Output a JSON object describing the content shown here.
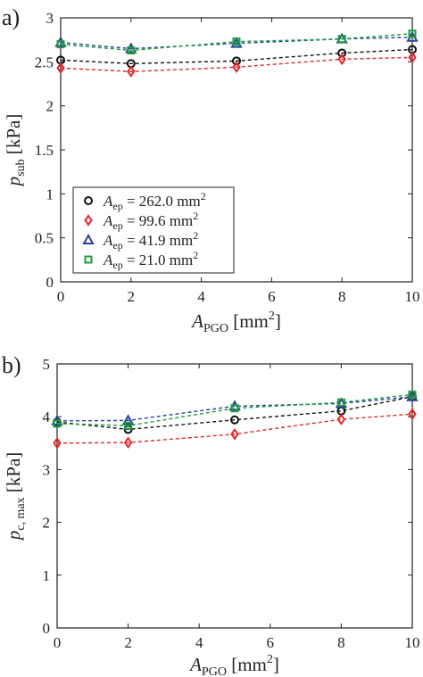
{
  "chart_data": [
    {
      "type": "line",
      "panel_label": "a)",
      "x": [
        0,
        2,
        5,
        8,
        10
      ],
      "xlim": [
        0,
        10
      ],
      "ylim": [
        0,
        3
      ],
      "xticks": [
        "0",
        "2",
        "4",
        "6",
        "8",
        "10"
      ],
      "yticks": [
        "0",
        "0.5",
        "1",
        "1.5",
        "2",
        "2.5",
        "3"
      ],
      "xlabel": {
        "main": "A",
        "sub": "PGO",
        "unit": " [mm",
        "sup": "2",
        "unit_end": "]"
      },
      "ylabel": {
        "main": "p",
        "sub": "sub",
        "unit": " [kPa]"
      },
      "grid": false,
      "legend_position": "bottom-left",
      "series": [
        {
          "name": "A_ep = 262.0 mm²",
          "legend": {
            "main": "A",
            "sub": "ep",
            "eq": " = 262.0 mm",
            "sup": "2"
          },
          "marker": "circle",
          "color": "#111111",
          "values": [
            2.52,
            2.48,
            2.51,
            2.6,
            2.64
          ]
        },
        {
          "name": "A_ep = 99.6 mm²",
          "legend": {
            "main": "A",
            "sub": "ep",
            "eq": " = 99.6 mm",
            "sup": "2"
          },
          "marker": "diamond",
          "color": "#e0292b",
          "values": [
            2.43,
            2.39,
            2.44,
            2.53,
            2.55
          ]
        },
        {
          "name": "A_ep = 41.9 mm²",
          "legend": {
            "main": "A",
            "sub": "ep",
            "eq": " = 41.9 mm",
            "sup": "2"
          },
          "marker": "triangle",
          "color": "#2b3f9e",
          "values": [
            2.72,
            2.65,
            2.71,
            2.76,
            2.78
          ]
        },
        {
          "name": "A_ep = 21.0 mm²",
          "legend": {
            "main": "A",
            "sub": "ep",
            "eq": " = 21.0 mm",
            "sup": "2"
          },
          "marker": "square",
          "color": "#1a9e3a",
          "values": [
            2.7,
            2.63,
            2.73,
            2.76,
            2.82
          ]
        }
      ]
    },
    {
      "type": "line",
      "panel_label": "b)",
      "x": [
        0,
        2,
        5,
        8,
        10
      ],
      "xlim": [
        0,
        10
      ],
      "ylim": [
        0,
        5
      ],
      "xticks": [
        "0",
        "2",
        "4",
        "6",
        "8",
        "10"
      ],
      "yticks": [
        "0",
        "1",
        "2",
        "3",
        "4",
        "5"
      ],
      "xlabel": {
        "main": "A",
        "sub": "PGO",
        "unit": " [mm",
        "sup": "2",
        "unit_end": "]"
      },
      "ylabel": {
        "main": "p",
        "sub": "c, max",
        "unit": " [kPa]"
      },
      "grid": false,
      "series": [
        {
          "name": "A_ep = 262.0 mm²",
          "marker": "circle",
          "color": "#111111",
          "values": [
            3.9,
            3.76,
            3.94,
            4.11,
            4.38
          ]
        },
        {
          "name": "A_ep = 99.6 mm²",
          "marker": "diamond",
          "color": "#e0292b",
          "values": [
            3.5,
            3.51,
            3.67,
            3.95,
            4.05
          ]
        },
        {
          "name": "A_ep = 41.9 mm²",
          "marker": "triangle",
          "color": "#2b3f9e",
          "values": [
            3.92,
            3.93,
            4.2,
            4.25,
            4.38
          ]
        },
        {
          "name": "A_ep = 21.0 mm²",
          "marker": "square",
          "color": "#1a9e3a",
          "values": [
            3.87,
            3.83,
            4.16,
            4.27,
            4.42
          ]
        }
      ]
    }
  ]
}
